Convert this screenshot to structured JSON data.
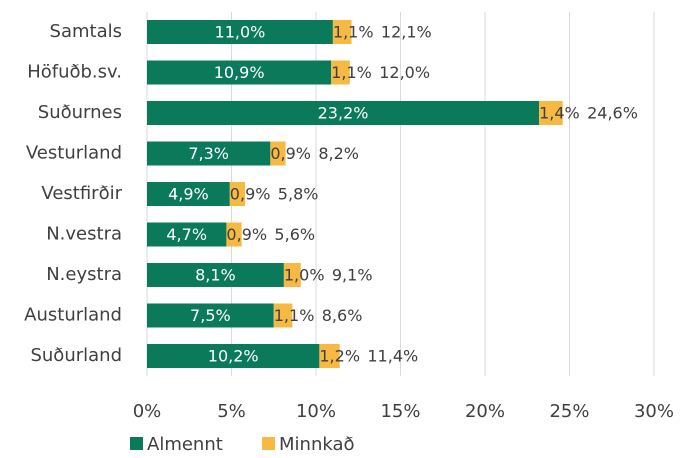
{
  "chart_data": {
    "type": "stacked-barh",
    "categories": [
      "Samtals",
      "Höfuðb.sv.",
      "Suðurnes",
      "Vesturland",
      "Vestfirðir",
      "N.vestra",
      "N.eystra",
      "Austurland",
      "Suðurland"
    ],
    "series": [
      {
        "name": "Almennt",
        "color": "#0b7a5b",
        "values": [
          11.0,
          10.9,
          23.2,
          7.3,
          4.9,
          4.7,
          8.1,
          7.5,
          10.2
        ],
        "value_labels": [
          "11,0%",
          "10,9%",
          "23,2%",
          "7,3%",
          "4,9%",
          "4,7%",
          "8,1%",
          "7,5%",
          "10,2%"
        ]
      },
      {
        "name": "Minnkað",
        "color": "#f6b943",
        "values": [
          1.1,
          1.1,
          1.4,
          0.9,
          0.9,
          0.9,
          1.0,
          1.1,
          1.2
        ],
        "value_labels": [
          "1,1%",
          "1,1%",
          "1,4%",
          "0,9%",
          "0,9%",
          "0,9%",
          "1,0%",
          "1,1%",
          "1,2%"
        ]
      }
    ],
    "totals": {
      "values": [
        12.1,
        12.0,
        24.6,
        8.2,
        5.8,
        5.6,
        9.1,
        8.6,
        11.4
      ],
      "value_labels": [
        "12,1%",
        "12,0%",
        "24,6%",
        "8,2%",
        "5,8%",
        "5,6%",
        "9,1%",
        "8,6%",
        "11,4%"
      ]
    },
    "xlim": [
      0,
      30
    ],
    "xticks": [
      {
        "value": 0,
        "label": "0%"
      },
      {
        "value": 5,
        "label": "5%"
      },
      {
        "value": 10,
        "label": "10%"
      },
      {
        "value": 15,
        "label": "15%"
      },
      {
        "value": 20,
        "label": "20%"
      },
      {
        "value": 25,
        "label": "25%"
      },
      {
        "value": 30,
        "label": "30%"
      }
    ],
    "grid": true,
    "legend": "bottom"
  }
}
